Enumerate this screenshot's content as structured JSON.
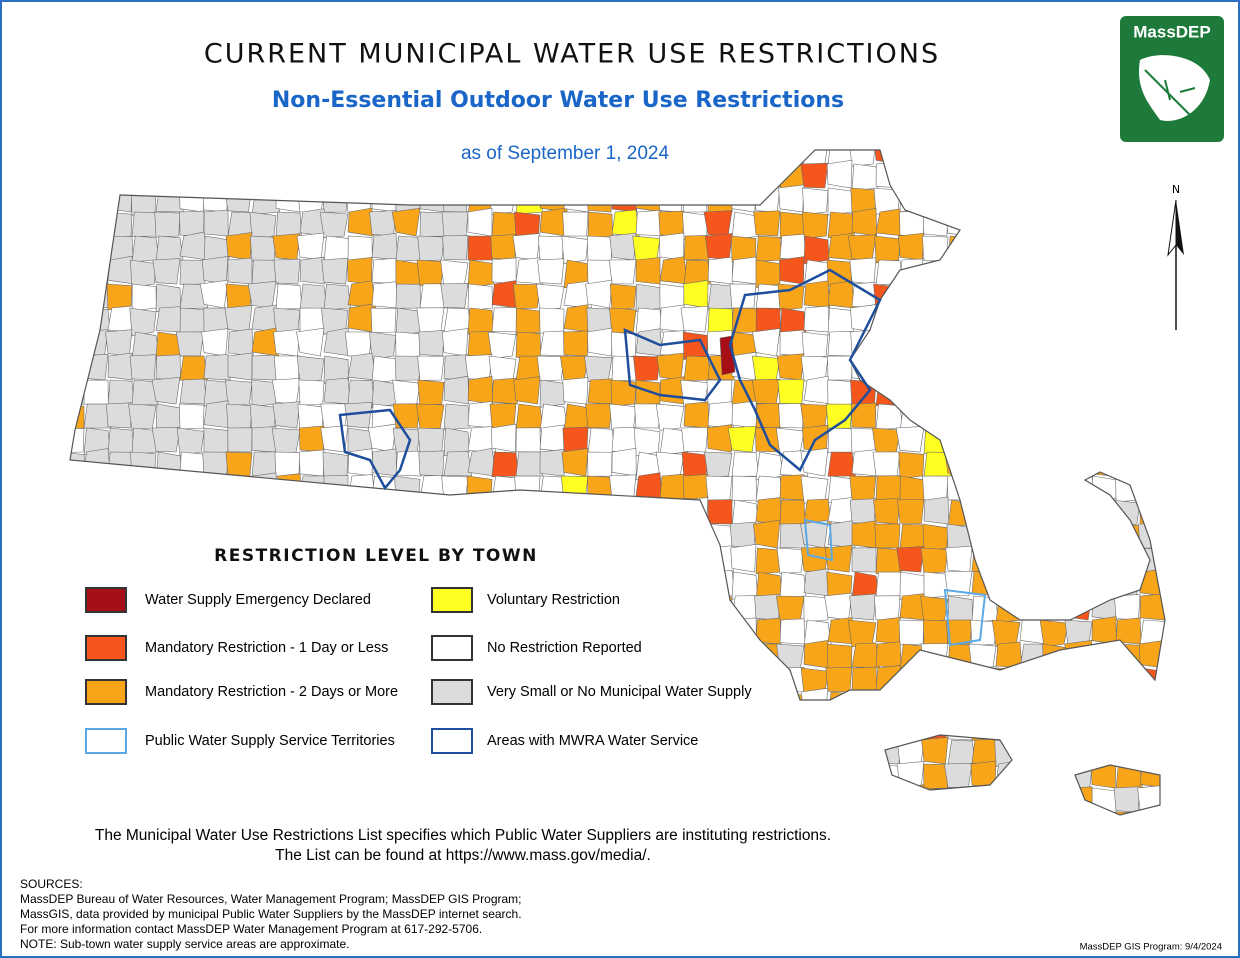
{
  "header": {
    "title": "CURRENT MUNICIPAL WATER USE RESTRICTIONS",
    "subtitle": "Non-Essential Outdoor Water Use Restrictions",
    "date": "as of September 1, 2024"
  },
  "logo": {
    "text": "MassDEP"
  },
  "north_arrow": "N",
  "legend": {
    "title": "RESTRICTION LEVEL BY TOWN",
    "items": [
      {
        "label": "Water Supply Emergency Declared",
        "fill": "#a50f15",
        "stroke": "#333333"
      },
      {
        "label": "Mandatory Restriction - 1 Day or Less",
        "fill": "#f4561c",
        "stroke": "#333333"
      },
      {
        "label": "Mandatory Restriction - 2 Days or More",
        "fill": "#f9a51a",
        "stroke": "#333333"
      },
      {
        "label": "Public Water Supply Service Territories",
        "fill": "#ffffff",
        "stroke": "#5aa9e6"
      },
      {
        "label": "Voluntary Restriction",
        "fill": "#ffff22",
        "stroke": "#333333"
      },
      {
        "label": "No Restriction Reported",
        "fill": "#ffffff",
        "stroke": "#333333"
      },
      {
        "label": "Very Small or No Municipal Water Supply",
        "fill": "#dcdcdc",
        "stroke": "#333333"
      },
      {
        "label": "Areas with MWRA Water Service",
        "fill": "#ffffff",
        "stroke": "#1f4e9c"
      }
    ]
  },
  "note": [
    "The Municipal Water Use Restrictions List specifies which Public Water Suppliers are instituting restrictions.",
    "The List can be found at https://www.mass.gov/media/."
  ],
  "sources": [
    "SOURCES:",
    "MassDEP Bureau of Water Resources, Water Management Program; MassDEP GIS Program;",
    "MassGIS, data provided by municipal Public Water Suppliers by the MassDEP internet search.",
    "For more information contact MassDEP Water Management Program at 617-292-5706.",
    "NOTE: Sub-town water supply service areas are approximate."
  ],
  "credit": "MassDEP GIS Program: 9/4/2024"
}
